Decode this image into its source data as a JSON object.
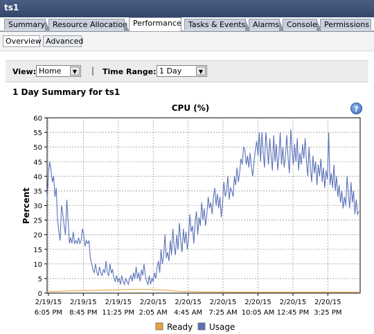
{
  "window": {
    "title": "ts1"
  },
  "tabs": [
    {
      "label": "Summary",
      "active": false
    },
    {
      "label": "Resource Allocation",
      "active": false
    },
    {
      "label": "Performance",
      "active": true
    },
    {
      "label": "Tasks & Events",
      "active": false
    },
    {
      "label": "Alarms",
      "active": false
    },
    {
      "label": "Console",
      "active": false
    },
    {
      "label": "Permissions",
      "active": false
    }
  ],
  "subtabs": [
    {
      "label": "Overview",
      "selected": true
    },
    {
      "label": "Advanced",
      "selected": false
    }
  ],
  "viewbar": {
    "view_label": "View:",
    "view_value": "Home",
    "separator": "|",
    "time_range_label": "Time Range:",
    "time_range_value": "1 Day"
  },
  "summary_title": "1 Day Summary for ts1",
  "help_icon": "?",
  "chart_data": {
    "type": "line",
    "title": "CPU (%)",
    "ylabel": "Percent",
    "xlabel": "",
    "ylim": [
      0,
      60
    ],
    "yticks": [
      0,
      5,
      10,
      15,
      20,
      25,
      30,
      35,
      40,
      45,
      50,
      55,
      60
    ],
    "xticks": [
      {
        "date": "2/19/15",
        "time": "6:05 PM",
        "hours": 0
      },
      {
        "date": "2/19/15",
        "time": "8:45 PM",
        "hours": 2.667
      },
      {
        "date": "2/19/15",
        "time": "11:25 PM",
        "hours": 5.333
      },
      {
        "date": "2/20/15",
        "time": "2:05 AM",
        "hours": 8
      },
      {
        "date": "2/20/15",
        "time": "4:45 AM",
        "hours": 10.667
      },
      {
        "date": "2/20/15",
        "time": "7:25 AM",
        "hours": 13.333
      },
      {
        "date": "2/20/15",
        "time": "10:05 AM",
        "hours": 16
      },
      {
        "date": "2/20/15",
        "time": "12:45 PM",
        "hours": 18.667
      },
      {
        "date": "2/20/15",
        "time": "3:25 PM",
        "hours": 21.333
      }
    ],
    "xlim_hours": [
      -0.1,
      23.8
    ],
    "grid": true,
    "legend_position": "bottom",
    "series": [
      {
        "name": "Ready",
        "color": "#e8a33c",
        "points": [
          [
            0,
            0.5
          ],
          [
            2,
            0.8
          ],
          [
            4,
            1.0
          ],
          [
            6,
            1.2
          ],
          [
            7,
            1.3
          ],
          [
            8,
            1.2
          ],
          [
            9,
            1.0
          ],
          [
            10,
            0.6
          ],
          [
            12,
            0.4
          ],
          [
            14,
            0.3
          ],
          [
            16,
            0.3
          ],
          [
            18,
            0.3
          ],
          [
            20,
            0.3
          ],
          [
            22,
            0.3
          ],
          [
            23.7,
            0.3
          ]
        ]
      },
      {
        "name": "Usage",
        "color": "#5a72b8",
        "points": [
          [
            -0.1,
            32
          ],
          [
            0,
            41
          ],
          [
            0.1,
            45
          ],
          [
            0.2,
            42
          ],
          [
            0.3,
            38
          ],
          [
            0.4,
            40
          ],
          [
            0.5,
            33
          ],
          [
            0.6,
            36
          ],
          [
            0.7,
            25
          ],
          [
            0.8,
            21
          ],
          [
            0.9,
            18
          ],
          [
            1.0,
            30
          ],
          [
            1.1,
            27
          ],
          [
            1.2,
            23
          ],
          [
            1.3,
            20
          ],
          [
            1.4,
            32
          ],
          [
            1.5,
            25
          ],
          [
            1.6,
            17
          ],
          [
            1.7,
            19
          ],
          [
            1.8,
            17
          ],
          [
            1.9,
            21
          ],
          [
            2.0,
            17
          ],
          [
            2.1,
            18
          ],
          [
            2.2,
            17
          ],
          [
            2.3,
            19
          ],
          [
            2.4,
            17
          ],
          [
            2.5,
            18
          ],
          [
            2.6,
            22
          ],
          [
            2.7,
            20
          ],
          [
            2.8,
            16
          ],
          [
            2.9,
            18
          ],
          [
            3.0,
            17
          ],
          [
            3.1,
            18
          ],
          [
            3.2,
            12
          ],
          [
            3.3,
            10
          ],
          [
            3.4,
            8
          ],
          [
            3.5,
            7
          ],
          [
            3.6,
            10
          ],
          [
            3.7,
            7
          ],
          [
            3.8,
            6
          ],
          [
            3.9,
            9
          ],
          [
            4.0,
            7
          ],
          [
            4.1,
            6
          ],
          [
            4.2,
            8
          ],
          [
            4.3,
            7
          ],
          [
            4.4,
            11
          ],
          [
            4.5,
            7
          ],
          [
            4.6,
            6
          ],
          [
            4.7,
            10
          ],
          [
            4.8,
            7
          ],
          [
            4.9,
            8
          ],
          [
            5.0,
            5
          ],
          [
            5.1,
            4
          ],
          [
            5.2,
            6
          ],
          [
            5.3,
            4
          ],
          [
            5.4,
            5
          ],
          [
            5.5,
            3
          ],
          [
            5.6,
            6
          ],
          [
            5.7,
            4
          ],
          [
            5.8,
            3
          ],
          [
            5.9,
            5
          ],
          [
            6.0,
            4
          ],
          [
            6.1,
            3
          ],
          [
            6.2,
            5
          ],
          [
            6.3,
            6
          ],
          [
            6.4,
            4
          ],
          [
            6.5,
            7
          ],
          [
            6.6,
            5
          ],
          [
            6.7,
            9
          ],
          [
            6.8,
            5
          ],
          [
            6.9,
            7
          ],
          [
            7.0,
            4
          ],
          [
            7.1,
            8
          ],
          [
            7.2,
            6
          ],
          [
            7.3,
            10
          ],
          [
            7.4,
            6
          ],
          [
            7.5,
            4
          ],
          [
            7.6,
            3
          ],
          [
            7.7,
            6
          ],
          [
            7.8,
            3
          ],
          [
            7.9,
            5
          ],
          [
            8.0,
            4
          ],
          [
            8.1,
            7
          ],
          [
            8.2,
            5
          ],
          [
            8.3,
            9
          ],
          [
            8.4,
            11
          ],
          [
            8.5,
            7
          ],
          [
            8.6,
            15
          ],
          [
            8.7,
            10
          ],
          [
            8.8,
            13
          ],
          [
            8.9,
            20
          ],
          [
            9.0,
            12
          ],
          [
            9.1,
            14
          ],
          [
            9.2,
            11
          ],
          [
            9.3,
            18
          ],
          [
            9.4,
            13
          ],
          [
            9.5,
            22
          ],
          [
            9.6,
            16
          ],
          [
            9.7,
            13
          ],
          [
            9.8,
            20
          ],
          [
            9.9,
            15
          ],
          [
            10.0,
            24
          ],
          [
            10.1,
            18
          ],
          [
            10.2,
            14
          ],
          [
            10.3,
            22
          ],
          [
            10.4,
            17
          ],
          [
            10.5,
            21
          ],
          [
            10.6,
            15
          ],
          [
            10.7,
            19
          ],
          [
            10.8,
            27
          ],
          [
            10.9,
            21
          ],
          [
            11.0,
            23
          ],
          [
            11.1,
            17
          ],
          [
            11.2,
            24
          ],
          [
            11.3,
            28
          ],
          [
            11.4,
            20
          ],
          [
            11.5,
            26
          ],
          [
            11.6,
            23
          ],
          [
            11.7,
            31
          ],
          [
            11.8,
            25
          ],
          [
            11.9,
            29
          ],
          [
            12.0,
            23
          ],
          [
            12.1,
            27
          ],
          [
            12.2,
            33
          ],
          [
            12.3,
            29
          ],
          [
            12.4,
            31
          ],
          [
            12.5,
            27
          ],
          [
            12.6,
            33
          ],
          [
            12.7,
            36
          ],
          [
            12.8,
            30
          ],
          [
            12.9,
            34
          ],
          [
            13.0,
            29
          ],
          [
            13.1,
            33
          ],
          [
            13.2,
            26
          ],
          [
            13.3,
            31
          ],
          [
            13.4,
            38
          ],
          [
            13.5,
            33
          ],
          [
            13.6,
            35
          ],
          [
            13.7,
            40
          ],
          [
            13.8,
            32
          ],
          [
            13.9,
            36
          ],
          [
            14.0,
            35
          ],
          [
            14.1,
            33
          ],
          [
            14.2,
            40
          ],
          [
            14.3,
            37
          ],
          [
            14.4,
            43
          ],
          [
            14.5,
            38
          ],
          [
            14.6,
            41
          ],
          [
            14.7,
            46
          ],
          [
            14.8,
            44
          ],
          [
            14.9,
            50
          ],
          [
            15.0,
            49
          ],
          [
            15.1,
            44
          ],
          [
            15.2,
            47
          ],
          [
            15.3,
            43
          ],
          [
            15.4,
            48
          ],
          [
            15.5,
            43
          ],
          [
            15.6,
            40
          ],
          [
            15.7,
            45
          ],
          [
            15.8,
            49
          ],
          [
            15.9,
            52
          ],
          [
            16.0,
            47
          ],
          [
            16.1,
            55
          ],
          [
            16.2,
            45
          ],
          [
            16.3,
            55
          ],
          [
            16.4,
            48
          ],
          [
            16.5,
            43
          ],
          [
            16.6,
            55
          ],
          [
            16.7,
            50
          ],
          [
            16.8,
            44
          ],
          [
            16.9,
            53
          ],
          [
            17.0,
            47
          ],
          [
            17.1,
            42
          ],
          [
            17.2,
            54
          ],
          [
            17.3,
            45
          ],
          [
            17.4,
            51
          ],
          [
            17.5,
            42
          ],
          [
            17.6,
            47
          ],
          [
            17.7,
            55
          ],
          [
            17.8,
            44
          ],
          [
            17.9,
            50
          ],
          [
            18.0,
            43
          ],
          [
            18.1,
            47
          ],
          [
            18.2,
            54
          ],
          [
            18.3,
            46
          ],
          [
            18.4,
            41
          ],
          [
            18.5,
            56
          ],
          [
            18.6,
            49
          ],
          [
            18.7,
            44
          ],
          [
            18.8,
            51
          ],
          [
            18.9,
            45
          ],
          [
            19.0,
            53
          ],
          [
            19.1,
            42
          ],
          [
            19.2,
            48
          ],
          [
            19.3,
            44
          ],
          [
            19.4,
            51
          ],
          [
            19.5,
            46
          ],
          [
            19.6,
            53
          ],
          [
            19.7,
            45
          ],
          [
            19.8,
            40
          ],
          [
            19.9,
            50
          ],
          [
            20.0,
            43
          ],
          [
            20.1,
            38
          ],
          [
            20.2,
            47
          ],
          [
            20.3,
            41
          ],
          [
            20.4,
            45
          ],
          [
            20.5,
            37
          ],
          [
            20.6,
            44
          ],
          [
            20.7,
            40
          ],
          [
            20.8,
            46
          ],
          [
            20.9,
            38
          ],
          [
            21.0,
            43
          ],
          [
            21.1,
            36
          ],
          [
            21.2,
            42
          ],
          [
            21.3,
            39
          ],
          [
            21.4,
            55
          ],
          [
            21.5,
            37
          ],
          [
            21.6,
            41
          ],
          [
            21.7,
            36
          ],
          [
            21.8,
            44
          ],
          [
            21.9,
            35
          ],
          [
            22.0,
            40
          ],
          [
            22.1,
            33
          ],
          [
            22.2,
            37
          ],
          [
            22.3,
            31
          ],
          [
            22.4,
            35
          ],
          [
            22.5,
            29
          ],
          [
            22.6,
            33
          ],
          [
            22.7,
            30
          ],
          [
            22.8,
            40
          ],
          [
            22.9,
            34
          ],
          [
            23.0,
            29
          ],
          [
            23.1,
            38
          ],
          [
            23.2,
            31
          ],
          [
            23.3,
            35
          ],
          [
            23.4,
            27
          ],
          [
            23.5,
            32
          ],
          [
            23.6,
            27
          ],
          [
            23.7,
            28
          ]
        ]
      }
    ]
  }
}
